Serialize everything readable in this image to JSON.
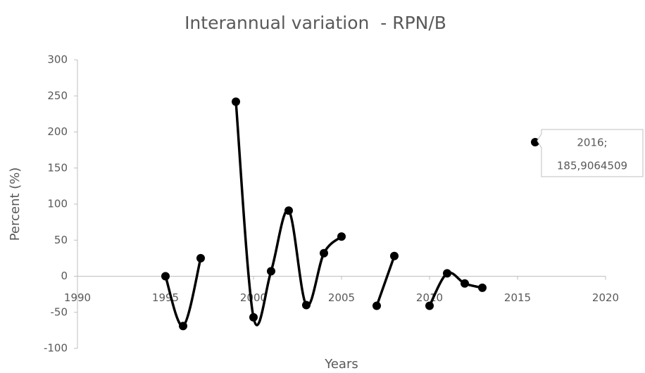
{
  "chart_data": {
    "type": "line",
    "title": "Interannual variation  - RPN/B",
    "x_label": "Years",
    "y_label": "Percent (%)",
    "x": [
      1995,
      1996,
      1997,
      1998,
      1999,
      2000,
      2001,
      2002,
      2003,
      2004,
      2005,
      2006,
      2007,
      2008,
      2009,
      2010,
      2011,
      2012,
      2013,
      2014,
      2015,
      2016
    ],
    "series": [
      {
        "color": "#000000",
        "values": [
          0,
          -69,
          25,
          null,
          242,
          -57,
          7,
          91,
          -40,
          32,
          55,
          null,
          -41,
          28,
          null,
          -41,
          4,
          -10,
          -16,
          null,
          null,
          185.9064509
        ]
      }
    ],
    "annotations": [
      {
        "lines": [
          "2016;",
          "185,9064509"
        ]
      }
    ],
    "xlim": [
      1990,
      2020
    ],
    "xticks": [
      1990,
      1995,
      2000,
      2005,
      2010,
      2015,
      2020
    ],
    "ylim": [
      -100,
      300
    ],
    "yticks": [
      -100,
      -50,
      0,
      50,
      100,
      150,
      200,
      250,
      300
    ],
    "grid": false,
    "smooth": true
  }
}
